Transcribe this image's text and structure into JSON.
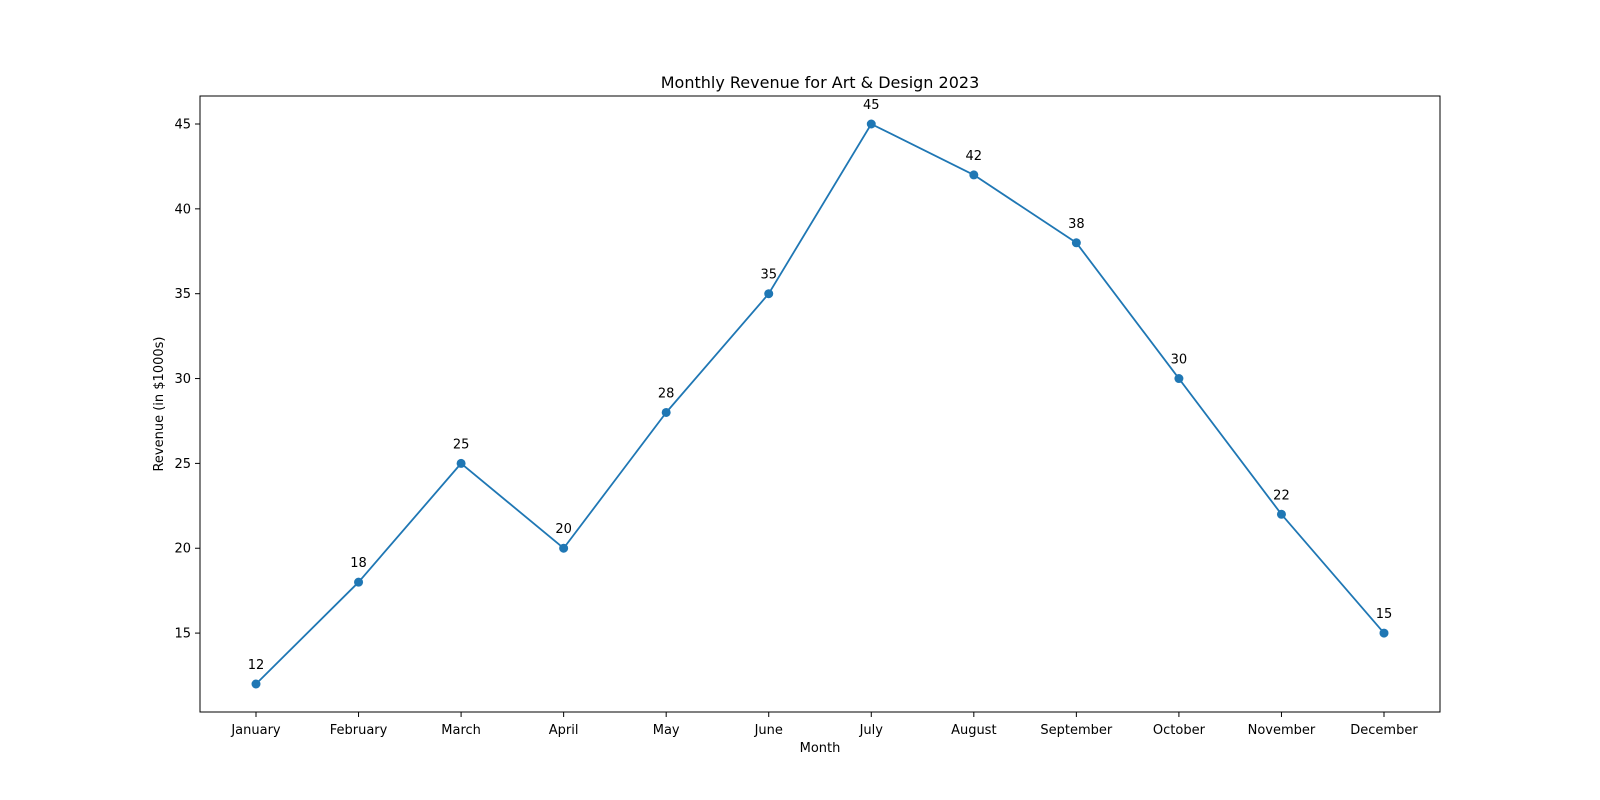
{
  "chart_data": {
    "type": "line",
    "title": "Monthly Revenue for Art & Design 2023",
    "xlabel": "Month",
    "ylabel": "Revenue (in $1000s)",
    "categories": [
      "January",
      "February",
      "March",
      "April",
      "May",
      "June",
      "July",
      "August",
      "September",
      "October",
      "November",
      "December"
    ],
    "series": [
      {
        "values": [
          12,
          18,
          25,
          20,
          28,
          35,
          45,
          42,
          38,
          30,
          22,
          15
        ]
      }
    ],
    "data_labels": [
      "12",
      "18",
      "25",
      "20",
      "28",
      "35",
      "45",
      "42",
      "38",
      "30",
      "22",
      "15"
    ],
    "y_ticks": [
      15,
      20,
      25,
      30,
      35,
      40,
      45
    ],
    "y_tick_labels": [
      "15",
      "20",
      "25",
      "30",
      "35",
      "40",
      "45"
    ],
    "ylim": [
      10.35,
      46.65
    ],
    "grid": false,
    "legend": "none",
    "markers": true,
    "colors": {
      "series": "#1f77b4",
      "axes": "#000000",
      "background": "#ffffff"
    }
  }
}
